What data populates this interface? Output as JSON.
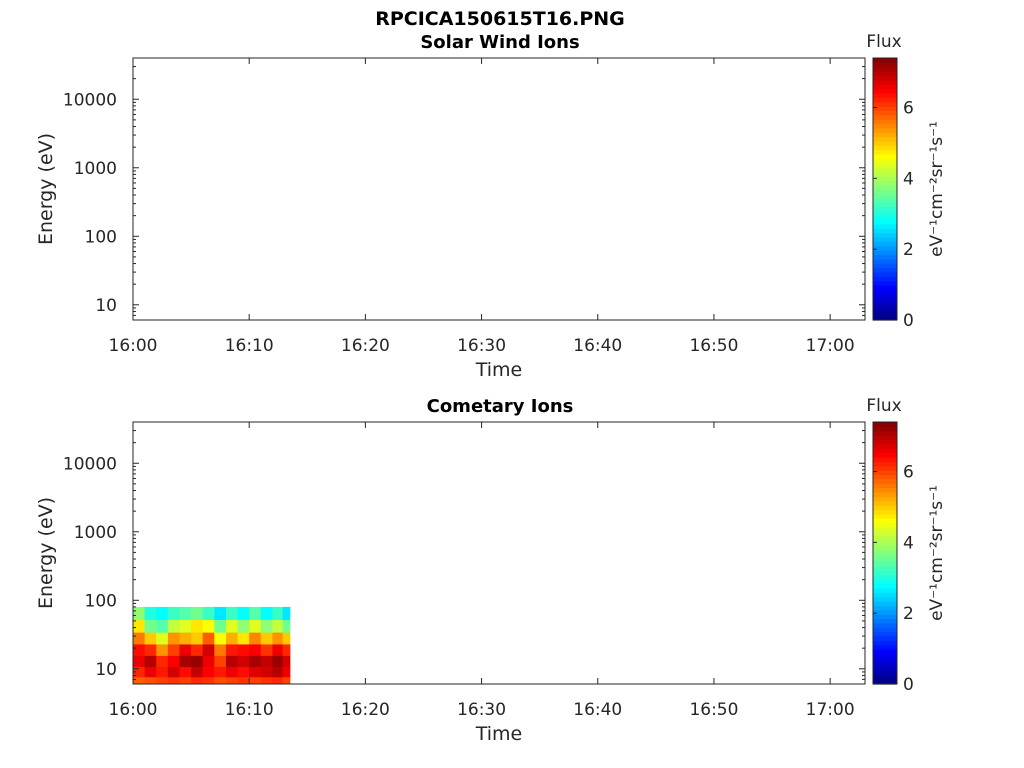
{
  "figure_title": "RPCICA150615T16.PNG",
  "colors": {
    "jet": [
      "#00007f",
      "#0000ff",
      "#007fff",
      "#00ffff",
      "#7fff7f",
      "#ffff00",
      "#ff7f00",
      "#ff0000",
      "#7f0000"
    ]
  },
  "chart_data": [
    {
      "type": "heatmap",
      "title": "Solar Wind Ions",
      "xlabel": "Time",
      "ylabel": "Energy (eV)",
      "x_ticks": [
        "16:00",
        "16:10",
        "16:20",
        "16:30",
        "16:40",
        "16:50",
        "17:00"
      ],
      "x_range": [
        "16:00",
        "17:03"
      ],
      "y_scale": "log",
      "y_ticks": [
        "10",
        "100",
        "1000",
        "10000"
      ],
      "y_range": [
        6,
        40000
      ],
      "colorbar": {
        "title": "Flux",
        "label": "eV⁻¹cm⁻²sr⁻¹s⁻¹",
        "ticks": [
          "0",
          "2",
          "4",
          "6"
        ],
        "range": [
          0,
          7.4
        ]
      },
      "data": []
    },
    {
      "type": "heatmap",
      "title": "Cometary Ions",
      "xlabel": "Time",
      "ylabel": "Energy (eV)",
      "x_ticks": [
        "16:00",
        "16:10",
        "16:20",
        "16:30",
        "16:40",
        "16:50",
        "17:00"
      ],
      "x_range": [
        "16:00",
        "17:03"
      ],
      "y_scale": "log",
      "y_ticks": [
        "10",
        "100",
        "1000",
        "10000"
      ],
      "y_range": [
        6,
        40000
      ],
      "colorbar": {
        "title": "Flux",
        "label": "eV⁻¹cm⁻²sr⁻¹s⁻¹",
        "ticks": [
          "0",
          "2",
          "4",
          "6"
        ],
        "range": [
          0,
          7.4
        ]
      },
      "data_extent": {
        "time": [
          "16:00",
          "16:13.5"
        ],
        "energy": [
          6,
          80
        ]
      },
      "data": [
        {
          "time": "16:00.5",
          "values": [
            5.8,
            6.2,
            6.6,
            6.4,
            5.6,
            4.8,
            3.8
          ]
        },
        {
          "time": "16:01.5",
          "values": [
            5.9,
            6.6,
            7.0,
            6.2,
            5.0,
            3.6,
            3.0
          ]
        },
        {
          "time": "16:02.5",
          "values": [
            6.0,
            6.3,
            6.2,
            5.4,
            4.4,
            3.4,
            2.8
          ]
        },
        {
          "time": "16:03.5",
          "values": [
            6.1,
            6.8,
            6.5,
            6.0,
            5.4,
            4.2,
            3.2
          ]
        },
        {
          "time": "16:04.5",
          "values": [
            6.0,
            6.4,
            7.1,
            6.6,
            5.2,
            4.4,
            3.4
          ]
        },
        {
          "time": "16:05.5",
          "values": [
            6.2,
            6.9,
            7.2,
            6.2,
            5.0,
            4.8,
            3.6
          ]
        },
        {
          "time": "16:06.5",
          "values": [
            6.1,
            6.5,
            6.6,
            6.8,
            5.8,
            4.6,
            3.2
          ]
        },
        {
          "time": "16:07.5",
          "values": [
            5.9,
            6.3,
            6.0,
            5.6,
            4.6,
            3.6,
            2.6
          ]
        },
        {
          "time": "16:08.5",
          "values": [
            6.0,
            6.6,
            7.0,
            6.3,
            5.2,
            4.4,
            3.2
          ]
        },
        {
          "time": "16:09.5",
          "values": [
            6.1,
            6.4,
            6.8,
            6.4,
            4.8,
            3.8,
            2.8
          ]
        },
        {
          "time": "16:10.5",
          "values": [
            6.0,
            6.7,
            7.1,
            6.5,
            5.5,
            4.4,
            3.4
          ]
        },
        {
          "time": "16:11.5",
          "values": [
            6.1,
            6.8,
            6.9,
            6.1,
            5.0,
            3.8,
            2.8
          ]
        },
        {
          "time": "16:12.5",
          "values": [
            6.2,
            7.0,
            7.2,
            6.6,
            5.4,
            4.2,
            3.2
          ]
        },
        {
          "time": "16:13.25",
          "values": [
            6.0,
            6.6,
            6.8,
            6.2,
            5.0,
            3.6,
            2.6
          ]
        }
      ],
      "energy_bins": [
        6.5,
        9,
        13,
        19,
        28,
        42,
        65
      ]
    }
  ]
}
